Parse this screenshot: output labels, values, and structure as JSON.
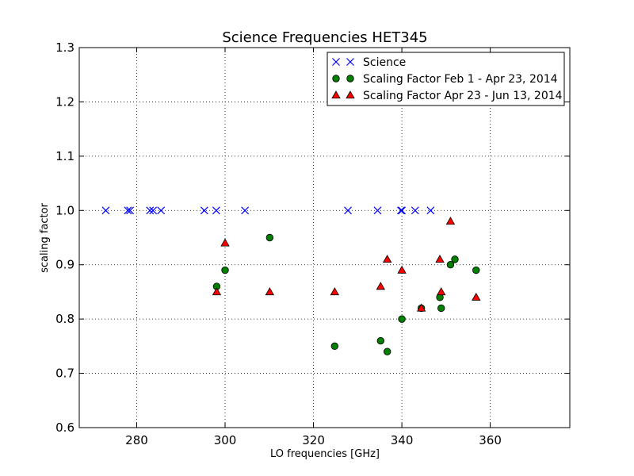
{
  "chart_data": {
    "type": "scatter",
    "title": "Science Frequencies HET345",
    "xlabel": "LO frequencies [GHz]",
    "ylabel": "scaling factor",
    "xlim": [
      267,
      378
    ],
    "ylim": [
      0.6,
      1.3
    ],
    "xticks": [
      280,
      300,
      320,
      340,
      360
    ],
    "yticks": [
      0.6,
      0.7,
      0.8,
      0.9,
      1.0,
      1.1,
      1.2,
      1.3
    ],
    "grid": true,
    "legend_position": "top-right",
    "series": [
      {
        "name": "Science",
        "marker": "x",
        "color": "#0000ff",
        "points": [
          [
            273.0,
            1.0
          ],
          [
            278.0,
            1.0
          ],
          [
            278.5,
            1.0
          ],
          [
            283.0,
            1.0
          ],
          [
            283.7,
            1.0
          ],
          [
            285.5,
            1.0
          ],
          [
            295.3,
            1.0
          ],
          [
            298.0,
            1.0
          ],
          [
            304.5,
            1.0
          ],
          [
            327.8,
            1.0
          ],
          [
            334.5,
            1.0
          ],
          [
            339.8,
            1.0
          ],
          [
            340.0,
            1.0
          ],
          [
            343.0,
            1.0
          ],
          [
            346.5,
            1.0
          ]
        ]
      },
      {
        "name": "Scaling Factor Feb 1 - Apr 23, 2014",
        "marker": "circle",
        "color": "#008000",
        "points": [
          [
            298.1,
            0.86
          ],
          [
            300.0,
            0.89
          ],
          [
            310.1,
            0.95
          ],
          [
            324.8,
            0.75
          ],
          [
            335.2,
            0.76
          ],
          [
            336.7,
            0.74
          ],
          [
            340.0,
            0.8
          ],
          [
            344.4,
            0.82
          ],
          [
            348.6,
            0.84
          ],
          [
            348.9,
            0.82
          ],
          [
            351.0,
            0.9
          ],
          [
            352.0,
            0.91
          ],
          [
            356.8,
            0.89
          ]
        ]
      },
      {
        "name": "Scaling Factor Apr 23 - Jun 13, 2014",
        "marker": "triangle",
        "color": "#ff0000",
        "points": [
          [
            298.1,
            0.85
          ],
          [
            300.0,
            0.94
          ],
          [
            310.1,
            0.85
          ],
          [
            324.8,
            0.85
          ],
          [
            335.2,
            0.86
          ],
          [
            336.7,
            0.91
          ],
          [
            340.0,
            0.89
          ],
          [
            344.4,
            0.82
          ],
          [
            348.6,
            0.91
          ],
          [
            348.9,
            0.85
          ],
          [
            351.0,
            0.98
          ],
          [
            356.8,
            0.84
          ]
        ]
      }
    ]
  }
}
